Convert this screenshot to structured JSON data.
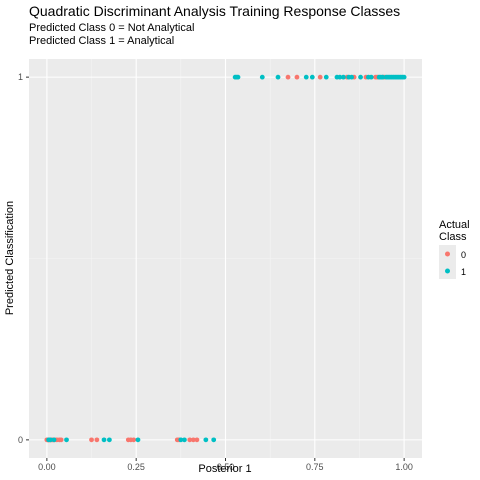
{
  "title": "Quadratic Discriminant Analysis Training Response Classes",
  "subtitle_lines": [
    "Predicted Class 0 = Not Analytical",
    "Predicted Class 1 = Analytical"
  ],
  "chart_data": {
    "type": "scatter",
    "xlabel": "Posterior 1",
    "ylabel": "Predicted Classification",
    "xlim": [
      -0.05,
      1.05
    ],
    "ylim": [
      -0.05,
      1.05
    ],
    "x_ticks": [
      "0.00",
      "0.25",
      "0.50",
      "0.75",
      "1.00"
    ],
    "y_ticks": [
      "0",
      "1"
    ],
    "grid": true,
    "legend": {
      "title": "Actual Class",
      "title_lines": [
        "Actual",
        "Class"
      ],
      "position": "right",
      "entries": [
        {
          "label": "0",
          "color": "#F8766D"
        },
        {
          "label": "1",
          "color": "#00BFC4"
        }
      ]
    },
    "series": [
      {
        "name": "0",
        "color": "#F8766D",
        "points": [
          [
            0.0,
            0
          ],
          [
            0.002,
            0
          ],
          [
            0.004,
            0
          ],
          [
            0.006,
            0
          ],
          [
            0.008,
            0
          ],
          [
            0.01,
            0
          ],
          [
            0.012,
            0
          ],
          [
            0.015,
            0
          ],
          [
            0.018,
            0
          ],
          [
            0.022,
            0
          ],
          [
            0.028,
            0
          ],
          [
            0.035,
            0
          ],
          [
            0.04,
            0
          ],
          [
            0.125,
            0
          ],
          [
            0.14,
            0
          ],
          [
            0.228,
            0
          ],
          [
            0.235,
            0
          ],
          [
            0.243,
            0
          ],
          [
            0.365,
            0
          ],
          [
            0.37,
            0
          ],
          [
            0.4,
            0
          ],
          [
            0.41,
            0
          ],
          [
            0.42,
            0
          ],
          [
            0.675,
            1
          ],
          [
            0.7,
            1
          ],
          [
            0.765,
            1
          ],
          [
            0.84,
            1
          ],
          [
            0.86,
            1
          ],
          [
            0.893,
            1
          ],
          [
            0.92,
            1
          ],
          [
            0.925,
            1
          ],
          [
            0.94,
            1
          ],
          [
            0.945,
            1
          ]
        ]
      },
      {
        "name": "1",
        "color": "#00BFC4",
        "points": [
          [
            0.005,
            0
          ],
          [
            0.01,
            0
          ],
          [
            0.02,
            0
          ],
          [
            0.055,
            0
          ],
          [
            0.16,
            0
          ],
          [
            0.175,
            0
          ],
          [
            0.255,
            0
          ],
          [
            0.375,
            0
          ],
          [
            0.385,
            0
          ],
          [
            0.445,
            0
          ],
          [
            0.467,
            0
          ],
          [
            0.527,
            1
          ],
          [
            0.531,
            1
          ],
          [
            0.535,
            1
          ],
          [
            0.603,
            1
          ],
          [
            0.647,
            1
          ],
          [
            0.726,
            1
          ],
          [
            0.743,
            1
          ],
          [
            0.782,
            1
          ],
          [
            0.812,
            1
          ],
          [
            0.82,
            1
          ],
          [
            0.83,
            1
          ],
          [
            0.845,
            1
          ],
          [
            0.853,
            1
          ],
          [
            0.878,
            1
          ],
          [
            0.9,
            1
          ],
          [
            0.908,
            1
          ],
          [
            0.93,
            1
          ],
          [
            0.935,
            1
          ],
          [
            0.94,
            1
          ],
          [
            0.95,
            1
          ],
          [
            0.955,
            1
          ],
          [
            0.96,
            1
          ],
          [
            0.965,
            1
          ],
          [
            0.97,
            1
          ],
          [
            0.975,
            1
          ],
          [
            0.98,
            1
          ],
          [
            0.985,
            1
          ],
          [
            0.99,
            1
          ],
          [
            0.995,
            1
          ],
          [
            1.0,
            1
          ]
        ]
      }
    ]
  }
}
